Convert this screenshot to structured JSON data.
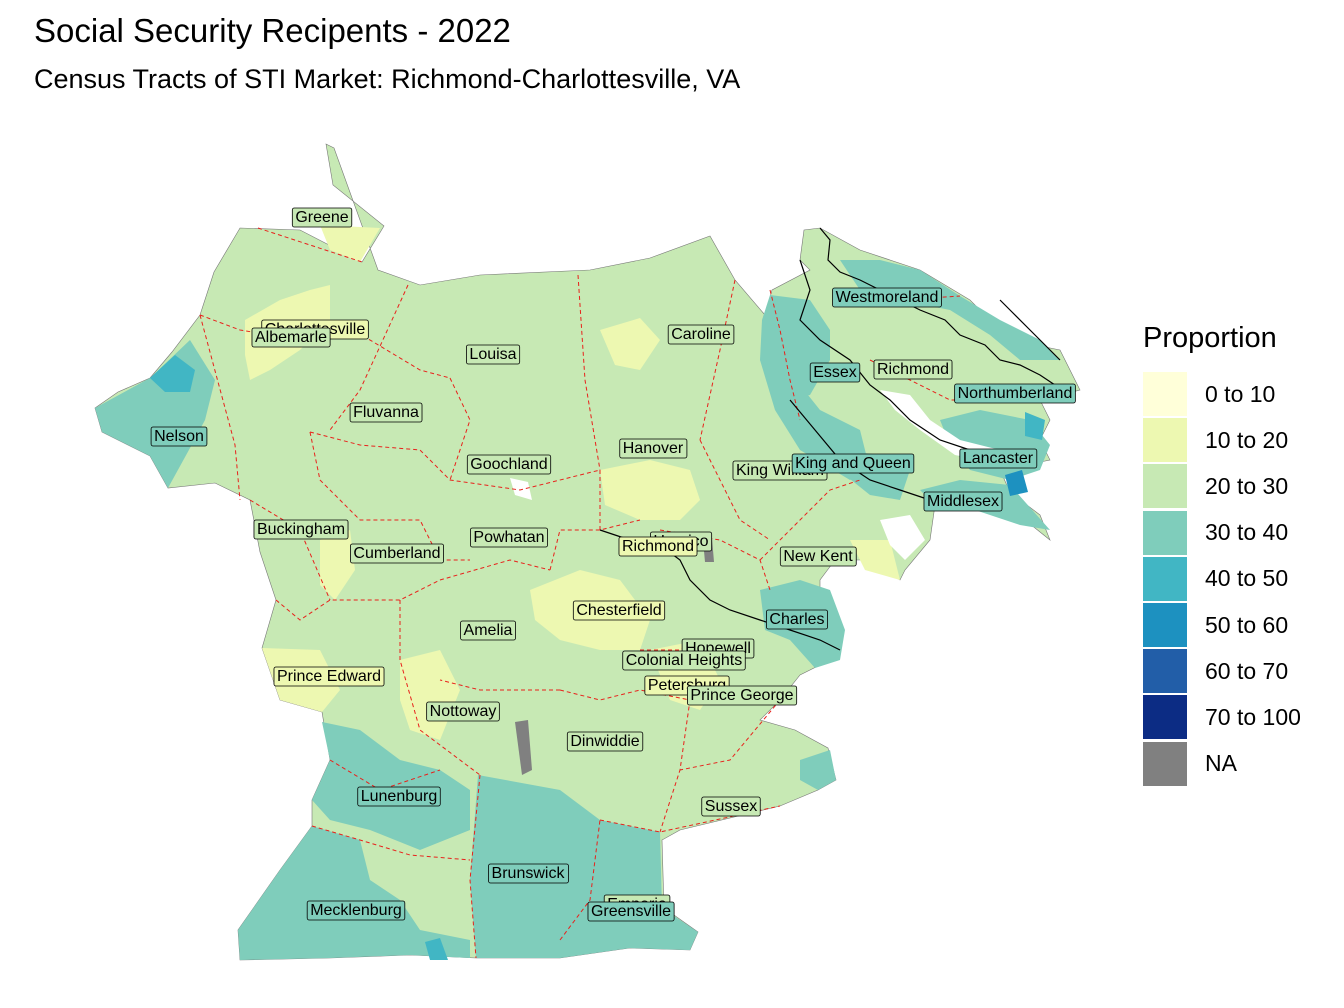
{
  "title": "Social Security Recipents - 2022",
  "subtitle": "Census Tracts of STI Market: Richmond-Charlottesville, VA",
  "legend": {
    "title": "Proportion",
    "items": [
      {
        "label": "0 to 10",
        "color": "#ffffd9"
      },
      {
        "label": "10 to 20",
        "color": "#edf8b1"
      },
      {
        "label": "20 to 30",
        "color": "#c7e9b4"
      },
      {
        "label": "30 to 40",
        "color": "#7fcdbb"
      },
      {
        "label": "40 to 50",
        "color": "#41b6c4"
      },
      {
        "label": "50 to 60",
        "color": "#1d91c0"
      },
      {
        "label": "60 to 70",
        "color": "#225ea8"
      },
      {
        "label": "70 to 100",
        "color": "#0c2c84"
      },
      {
        "label": "NA",
        "color": "#808080"
      }
    ]
  },
  "counties": [
    {
      "name": "Greene",
      "fill": "#c7e9b4"
    },
    {
      "name": "Charlottesville",
      "fill": "#edf8b1"
    },
    {
      "name": "Albemarle",
      "fill": "#c7e9b4"
    },
    {
      "name": "Nelson",
      "fill": "#7fcdbb"
    },
    {
      "name": "Louisa",
      "fill": "#c7e9b4"
    },
    {
      "name": "Fluvanna",
      "fill": "#c7e9b4"
    },
    {
      "name": "Caroline",
      "fill": "#c7e9b4"
    },
    {
      "name": "Westmoreland",
      "fill": "#7fcdbb"
    },
    {
      "name": "Essex",
      "fill": "#7fcdbb"
    },
    {
      "name": "Richmond",
      "fill": "#c7e9b4"
    },
    {
      "name": "Northumberland",
      "fill": "#7fcdbb"
    },
    {
      "name": "Hanover",
      "fill": "#c7e9b4"
    },
    {
      "name": "Goochland",
      "fill": "#c7e9b4"
    },
    {
      "name": "King William",
      "fill": "#c7e9b4"
    },
    {
      "name": "King and Queen",
      "fill": "#7fcdbb"
    },
    {
      "name": "Lancaster",
      "fill": "#7fcdbb"
    },
    {
      "name": "Middlesex",
      "fill": "#7fcdbb"
    },
    {
      "name": "Buckingham",
      "fill": "#c7e9b4"
    },
    {
      "name": "Cumberland",
      "fill": "#c7e9b4"
    },
    {
      "name": "Powhatan",
      "fill": "#c7e9b4"
    },
    {
      "name": "Henrico",
      "fill": "#c7e9b4"
    },
    {
      "name": "Richmond",
      "fill": "#edf8b1"
    },
    {
      "name": "New Kent",
      "fill": "#c7e9b4"
    },
    {
      "name": "Chesterfield",
      "fill": "#edf8b1"
    },
    {
      "name": "Amelia",
      "fill": "#c7e9b4"
    },
    {
      "name": "Charles",
      "fill": "#7fcdbb"
    },
    {
      "name": "Hopewell",
      "fill": "#c7e9b4"
    },
    {
      "name": "Colonial Heights",
      "fill": "#c7e9b4"
    },
    {
      "name": "Prince Edward",
      "fill": "#edf8b1"
    },
    {
      "name": "Petersburg",
      "fill": "#edf8b1"
    },
    {
      "name": "Prince George",
      "fill": "#c7e9b4"
    },
    {
      "name": "Nottoway",
      "fill": "#c7e9b4"
    },
    {
      "name": "Dinwiddie",
      "fill": "#c7e9b4"
    },
    {
      "name": "Lunenburg",
      "fill": "#7fcdbb"
    },
    {
      "name": "Sussex",
      "fill": "#c7e9b4"
    },
    {
      "name": "Brunswick",
      "fill": "#7fcdbb"
    },
    {
      "name": "Emporia",
      "fill": "#c7e9b4"
    },
    {
      "name": "Greensville",
      "fill": "#7fcdbb"
    },
    {
      "name": "Mecklenburg",
      "fill": "#7fcdbb"
    }
  ]
}
